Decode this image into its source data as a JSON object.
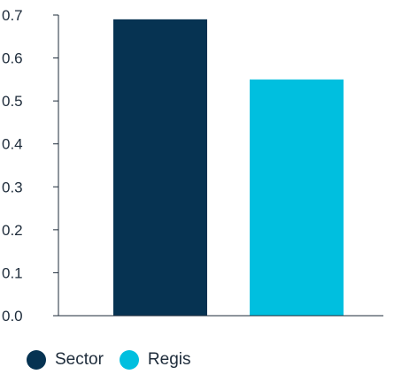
{
  "chart_data": {
    "type": "bar",
    "categories": [
      "Sector",
      "Regis"
    ],
    "values": [
      0.69,
      0.55
    ],
    "ylim": [
      0,
      0.7
    ],
    "yticks": [
      "0.0",
      "0.1",
      "0.2",
      "0.3",
      "0.4",
      "0.5",
      "0.6",
      "0.7"
    ],
    "title": "",
    "xlabel": "",
    "ylabel": "",
    "grid": false,
    "legend_position": "bottom-left",
    "colors": [
      "#063352",
      "#00bfdf"
    ]
  },
  "legend": {
    "items": [
      {
        "label": "Sector",
        "color": "#063352"
      },
      {
        "label": "Regis",
        "color": "#00bfdf"
      }
    ]
  },
  "style": {
    "axis_color": "#1d2b3a",
    "text_color": "#1d2b3a"
  }
}
